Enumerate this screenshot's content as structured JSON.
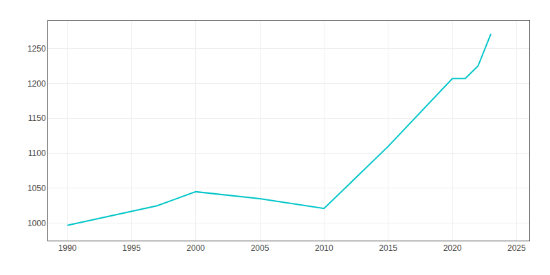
{
  "chart_data": {
    "type": "line",
    "x": [
      1990,
      1997,
      2000,
      2005,
      2010,
      2015,
      2020,
      2021,
      2022,
      2023
    ],
    "values": [
      997,
      1025,
      1045,
      1035,
      1021,
      1110,
      1207,
      1207,
      1225,
      1271
    ],
    "color": "#00C5C8",
    "xlim": [
      1988.5,
      2026
    ],
    "ylim": [
      975,
      1290
    ],
    "xticks": [
      1990,
      1995,
      2000,
      2005,
      2010,
      2015,
      2020,
      2025
    ],
    "yticks": [
      1000,
      1050,
      1100,
      1150,
      1200,
      1250
    ],
    "grid": true
  }
}
